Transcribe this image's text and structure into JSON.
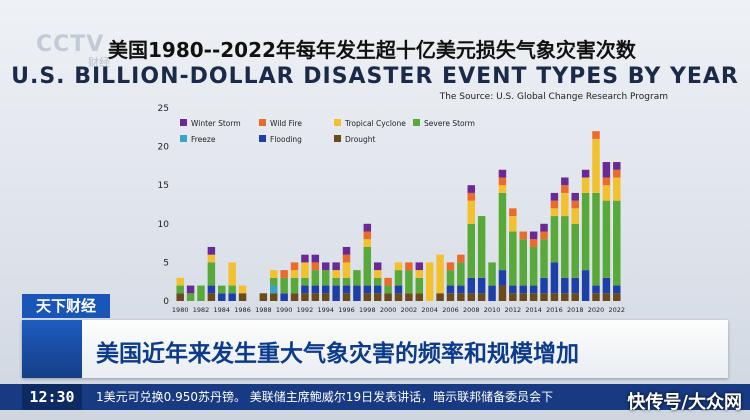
{
  "broadcast": {
    "logo": "CCTV",
    "logo_sub": "财经",
    "title_cn": "美国1980--2022年每年发生超十亿美元损失气象灾害次数",
    "title_en": "U.S. BILLION-DOLLAR DISASTER EVENT TYPES BY YEAR",
    "source": "The Source: U.S. Global Change Research Program",
    "section_tag": "天下财经",
    "headline": "美国近年来发生重大气象灾害的频率和规模增加",
    "clock": "12:30",
    "ticker": "1美元可兑换0.950苏丹镑。  美联储主席鲍威尔19日发表讲话，暗示联邦储备委员会下",
    "watermark": "快传号/大众网"
  },
  "chart_data": {
    "type": "bar",
    "stacked": true,
    "title": "U.S. BILLION-DOLLAR DISASTER EVENT TYPES BY YEAR",
    "xlabel": "",
    "ylabel": "",
    "ylim": [
      0,
      25
    ],
    "yticks": [
      0,
      5,
      10,
      15,
      20,
      25
    ],
    "grid": false,
    "legend_position": "top-left",
    "categories": [
      "1980",
      "1981",
      "1982",
      "1983",
      "1984",
      "1985",
      "1986",
      "1987",
      "1988",
      "1989",
      "1990",
      "1991",
      "1992",
      "1993",
      "1994",
      "1995",
      "1996",
      "1997",
      "1998",
      "1999",
      "2000",
      "2001",
      "2002",
      "2003",
      "2004",
      "2005",
      "2006",
      "2007",
      "2008",
      "2009",
      "2010",
      "2011",
      "2012",
      "2013",
      "2014",
      "2015",
      "2016",
      "2017",
      "2018",
      "2019",
      "2020",
      "2021",
      "2022"
    ],
    "xtick_labels": [
      "1980",
      "1982",
      "1984",
      "1986",
      "1988",
      "1990",
      "1992",
      "1994",
      "1996",
      "1998",
      "2000",
      "2002",
      "2004",
      "2006",
      "2008",
      "2010",
      "2012",
      "2014",
      "2016",
      "2018",
      "2020",
      "2022"
    ],
    "series": [
      {
        "name": "Drought",
        "color": "#6b4a1c",
        "values": [
          1,
          0,
          0,
          1,
          0,
          0,
          1,
          0,
          1,
          1,
          0,
          1,
          1,
          1,
          1,
          0,
          1,
          0,
          1,
          1,
          1,
          1,
          1,
          1,
          0,
          1,
          1,
          1,
          1,
          1,
          0,
          2,
          1,
          1,
          1,
          1,
          1,
          1,
          1,
          0,
          1,
          1,
          1
        ]
      },
      {
        "name": "Flooding",
        "color": "#1f3fa8",
        "values": [
          0,
          0,
          0,
          1,
          1,
          1,
          0,
          0,
          0,
          0,
          1,
          0,
          1,
          1,
          1,
          2,
          1,
          2,
          1,
          1,
          0,
          1,
          0,
          0,
          0,
          0,
          1,
          1,
          2,
          2,
          2,
          2,
          1,
          1,
          1,
          2,
          4,
          2,
          2,
          4,
          1,
          2,
          1
        ]
      },
      {
        "name": "Freeze",
        "color": "#3aa1c8",
        "values": [
          0,
          0,
          0,
          0,
          0,
          0,
          0,
          0,
          0,
          1,
          0,
          0,
          0,
          0,
          0,
          0,
          0,
          0,
          0,
          0,
          0,
          0,
          0,
          0,
          0,
          0,
          0,
          0,
          0,
          0,
          0,
          0,
          0,
          0,
          0,
          0,
          0,
          0,
          0,
          0,
          0,
          0,
          0
        ]
      },
      {
        "name": "Severe Storm",
        "color": "#58a83a",
        "values": [
          1,
          1,
          2,
          3,
          1,
          1,
          0,
          0,
          0,
          1,
          2,
          2,
          1,
          2,
          2,
          1,
          1,
          2,
          5,
          1,
          1,
          2,
          3,
          2,
          0,
          0,
          2,
          3,
          7,
          8,
          3,
          10,
          7,
          6,
          5,
          5,
          6,
          8,
          7,
          10,
          12,
          10,
          11
        ]
      },
      {
        "name": "Tropical Cyclone",
        "color": "#f2c12e",
        "values": [
          1,
          0,
          0,
          1,
          0,
          3,
          1,
          0,
          0,
          1,
          0,
          1,
          2,
          0,
          0,
          1,
          2,
          0,
          1,
          1,
          0,
          1,
          0,
          1,
          5,
          5,
          0,
          0,
          3,
          0,
          0,
          1,
          2,
          0,
          0,
          0,
          1,
          3,
          2,
          2,
          7,
          2,
          3
        ]
      },
      {
        "name": "Wild Fire",
        "color": "#ea6b2a",
        "values": [
          0,
          0,
          0,
          0,
          0,
          0,
          0,
          0,
          0,
          0,
          1,
          1,
          0,
          1,
          0,
          0,
          1,
          0,
          1,
          0,
          1,
          0,
          1,
          0,
          0,
          0,
          1,
          1,
          1,
          0,
          0,
          1,
          1,
          1,
          1,
          1,
          1,
          1,
          1,
          0,
          1,
          1,
          1
        ]
      },
      {
        "name": "Winter Storm",
        "color": "#6a2a96",
        "values": [
          0,
          1,
          0,
          1,
          0,
          0,
          0,
          0,
          0,
          0,
          0,
          0,
          1,
          1,
          1,
          1,
          1,
          0,
          1,
          1,
          0,
          0,
          0,
          1,
          0,
          0,
          0,
          0,
          1,
          0,
          0,
          1,
          0,
          0,
          1,
          1,
          1,
          1,
          1,
          1,
          0,
          2,
          1
        ]
      }
    ]
  }
}
